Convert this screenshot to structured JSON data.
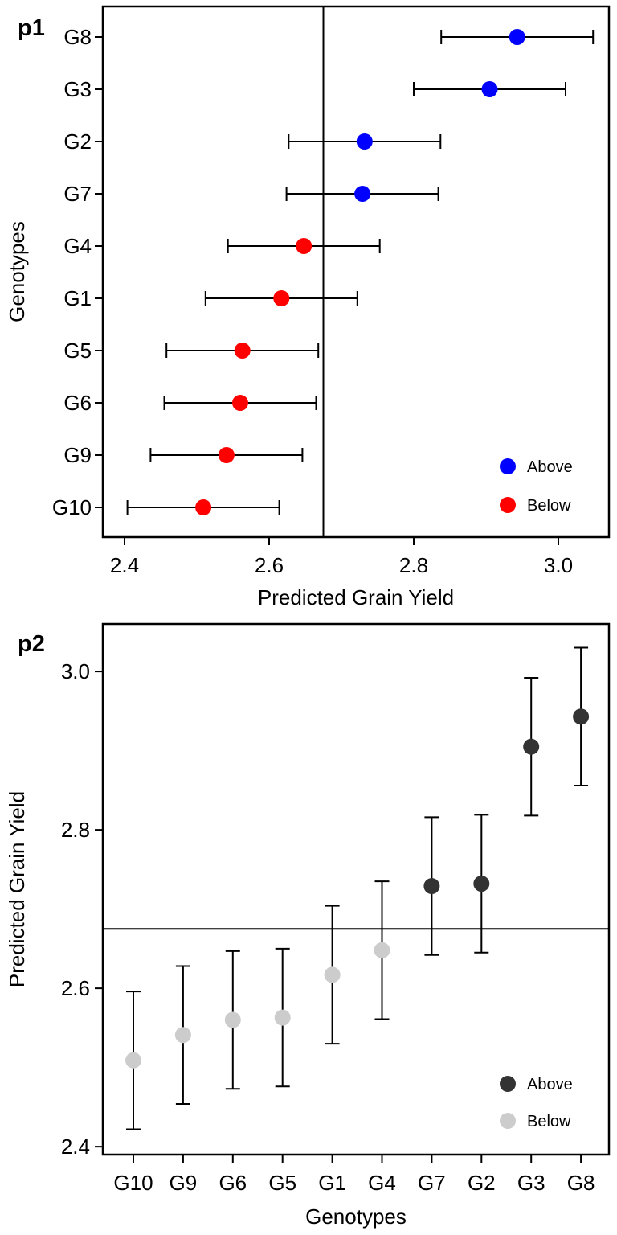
{
  "chart_data": [
    {
      "panel_label": "p1",
      "type": "scatter",
      "orientation": "horizontal",
      "xlabel": "Predicted Grain Yield",
      "ylabel": "Genotypes",
      "xlim": [
        2.37,
        3.07
      ],
      "xticks": [
        2.4,
        2.6,
        2.8,
        3.0
      ],
      "xtick_labels": [
        "2.4",
        "2.6",
        "2.8",
        "3.0"
      ],
      "reference_line": 2.675,
      "categories": [
        "G8",
        "G3",
        "G2",
        "G7",
        "G4",
        "G1",
        "G5",
        "G6",
        "G9",
        "G10"
      ],
      "values": [
        2.943,
        2.905,
        2.732,
        2.729,
        2.648,
        2.617,
        2.563,
        2.56,
        2.541,
        2.509
      ],
      "lower": [
        2.838,
        2.8,
        2.627,
        2.624,
        2.543,
        2.512,
        2.458,
        2.455,
        2.436,
        2.404
      ],
      "upper": [
        3.048,
        3.01,
        2.837,
        2.834,
        2.753,
        2.722,
        2.668,
        2.665,
        2.646,
        2.614
      ],
      "groups": [
        "Above",
        "Above",
        "Above",
        "Above",
        "Below",
        "Below",
        "Below",
        "Below",
        "Below",
        "Below"
      ],
      "legend": [
        {
          "label": "Above",
          "color": "#0000ff"
        },
        {
          "label": "Below",
          "color": "#ff0000"
        }
      ],
      "legend_position": "bottom-right",
      "grid": false
    },
    {
      "panel_label": "p2",
      "type": "scatter",
      "orientation": "vertical",
      "xlabel": "Genotypes",
      "ylabel": "Predicted Grain Yield",
      "ylim": [
        2.39,
        3.06
      ],
      "yticks": [
        2.4,
        2.6,
        2.8,
        3.0
      ],
      "ytick_labels": [
        "2.4",
        "2.6",
        "2.8",
        "3.0"
      ],
      "reference_line": 2.675,
      "categories": [
        "G10",
        "G9",
        "G6",
        "G5",
        "G1",
        "G4",
        "G7",
        "G2",
        "G3",
        "G8"
      ],
      "values": [
        2.509,
        2.541,
        2.56,
        2.563,
        2.617,
        2.648,
        2.729,
        2.732,
        2.905,
        2.943
      ],
      "lower": [
        2.422,
        2.454,
        2.473,
        2.476,
        2.53,
        2.561,
        2.642,
        2.645,
        2.818,
        2.856
      ],
      "upper": [
        2.596,
        2.628,
        2.647,
        2.65,
        2.704,
        2.735,
        2.816,
        2.819,
        2.992,
        3.03
      ],
      "groups": [
        "Below",
        "Below",
        "Below",
        "Below",
        "Below",
        "Below",
        "Above",
        "Above",
        "Above",
        "Above"
      ],
      "legend": [
        {
          "label": "Above",
          "color": "#333333"
        },
        {
          "label": "Below",
          "color": "#cccccc"
        }
      ],
      "legend_position": "bottom-right",
      "grid": false
    }
  ]
}
